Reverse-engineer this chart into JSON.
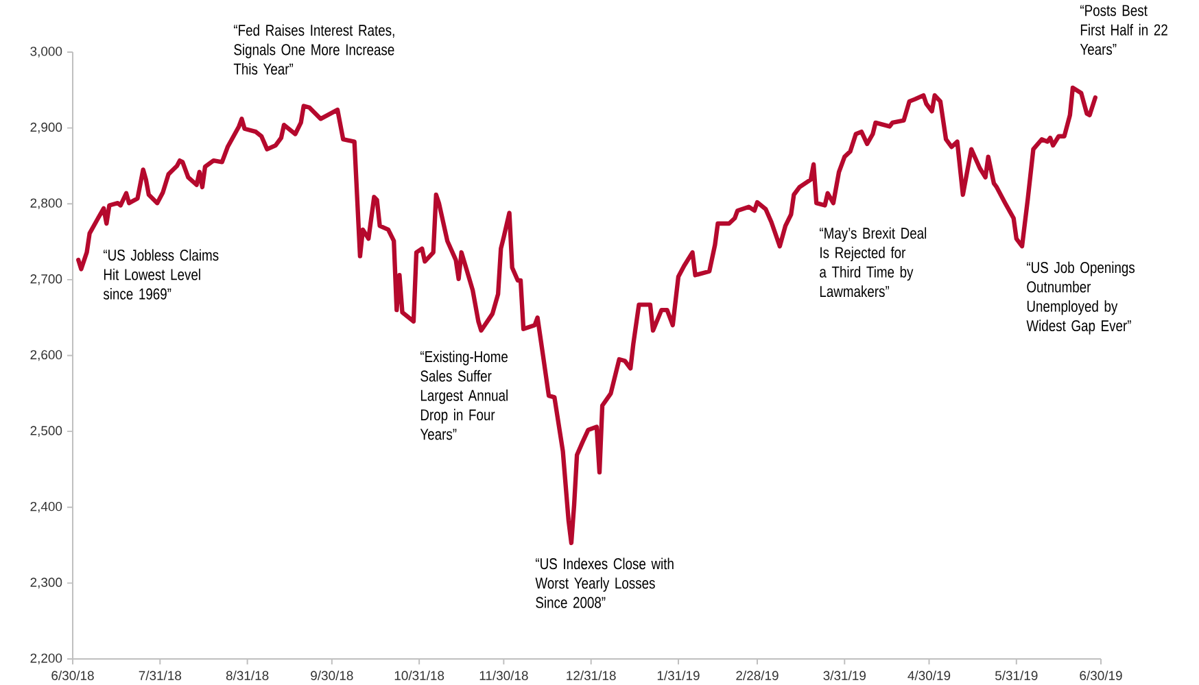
{
  "chart_data": {
    "type": "line",
    "x": [
      "2018-07-02",
      "2018-07-03",
      "2018-07-05",
      "2018-07-06",
      "2018-07-09",
      "2018-07-11",
      "2018-07-12",
      "2018-07-13",
      "2018-07-16",
      "2018-07-17",
      "2018-07-19",
      "2018-07-20",
      "2018-07-23",
      "2018-07-25",
      "2018-07-26",
      "2018-07-27",
      "2018-07-30",
      "2018-08-01",
      "2018-08-03",
      "2018-08-06",
      "2018-08-07",
      "2018-08-08",
      "2018-08-10",
      "2018-08-13",
      "2018-08-14",
      "2018-08-15",
      "2018-08-16",
      "2018-08-19",
      "2018-08-22",
      "2018-08-24",
      "2018-08-28",
      "2018-08-29",
      "2018-08-30",
      "2018-09-03",
      "2018-09-05",
      "2018-09-07",
      "2018-09-10",
      "2018-09-12",
      "2018-09-13",
      "2018-09-17",
      "2018-09-19",
      "2018-09-20",
      "2018-09-22",
      "2018-09-26",
      "2018-10-02",
      "2018-10-04",
      "2018-10-08",
      "2018-10-10",
      "2018-10-11",
      "2018-10-13",
      "2018-10-15",
      "2018-10-16",
      "2018-10-17",
      "2018-10-20",
      "2018-10-22",
      "2018-10-23",
      "2018-10-24",
      "2018-10-25",
      "2018-10-29",
      "2018-10-30",
      "2018-11-01",
      "2018-11-02",
      "2018-11-05",
      "2018-11-06",
      "2018-11-07",
      "2018-11-10",
      "2018-11-13",
      "2018-11-14",
      "2018-11-15",
      "2018-11-17",
      "2018-11-19",
      "2018-11-21",
      "2018-11-22",
      "2018-11-26",
      "2018-11-28",
      "2018-11-29",
      "2018-11-30",
      "2018-12-02",
      "2018-12-03",
      "2018-12-05",
      "2018-12-06",
      "2018-12-07",
      "2018-12-11",
      "2018-12-12",
      "2018-12-14",
      "2018-12-16",
      "2018-12-18",
      "2018-12-21",
      "2018-12-23",
      "2018-12-24",
      "2018-12-25",
      "2018-12-26",
      "2018-12-28",
      "2018-12-30",
      "2019-01-02",
      "2019-01-03",
      "2019-01-04",
      "2019-01-07",
      "2019-01-10",
      "2019-01-12",
      "2019-01-14",
      "2019-01-15",
      "2019-01-17",
      "2019-01-21",
      "2019-01-22",
      "2019-01-25",
      "2019-01-27",
      "2019-01-29",
      "2019-01-31",
      "2019-02-02",
      "2019-02-05",
      "2019-02-06",
      "2019-02-11",
      "2019-02-13",
      "2019-02-14",
      "2019-02-18",
      "2019-02-20",
      "2019-02-21",
      "2019-02-25",
      "2019-02-27",
      "2019-02-28",
      "2019-03-03",
      "2019-03-05",
      "2019-03-08",
      "2019-03-10",
      "2019-03-12",
      "2019-03-13",
      "2019-03-15",
      "2019-03-19",
      "2019-03-20",
      "2019-03-21",
      "2019-03-24",
      "2019-03-25",
      "2019-03-27",
      "2019-03-29",
      "2019-03-31",
      "2019-04-02",
      "2019-04-04",
      "2019-04-06",
      "2019-04-08",
      "2019-04-10",
      "2019-04-11",
      "2019-04-16",
      "2019-04-17",
      "2019-04-21",
      "2019-04-23",
      "2019-04-25",
      "2019-04-28",
      "2019-04-29",
      "2019-05-01",
      "2019-05-02",
      "2019-05-04",
      "2019-05-06",
      "2019-05-08",
      "2019-05-10",
      "2019-05-12",
      "2019-05-14",
      "2019-05-15",
      "2019-05-18",
      "2019-05-20",
      "2019-05-21",
      "2019-05-23",
      "2019-05-24",
      "2019-05-27",
      "2019-05-30",
      "2019-05-31",
      "2019-06-02",
      "2019-06-04",
      "2019-06-06",
      "2019-06-09",
      "2019-06-11",
      "2019-06-12",
      "2019-06-13",
      "2019-06-15",
      "2019-06-17",
      "2019-06-19",
      "2019-06-20",
      "2019-06-23",
      "2019-06-25",
      "2019-06-26",
      "2019-06-28"
    ],
    "series": [
      {
        "color": "#b5092d",
        "values": [
          2726,
          2714,
          2736,
          2761,
          2781,
          2794,
          2774,
          2798,
          2801,
          2798,
          2814,
          2801,
          2807,
          2845,
          2832,
          2812,
          2801,
          2815,
          2839,
          2850,
          2857,
          2855,
          2835,
          2825,
          2842,
          2822,
          2849,
          2857,
          2855,
          2875,
          2902,
          2912,
          2899,
          2895,
          2889,
          2872,
          2877,
          2887,
          2904,
          2892,
          2907,
          2929,
          2927,
          2912,
          2924,
          2885,
          2882,
          2731,
          2766,
          2754,
          2809,
          2805,
          2771,
          2766,
          2751,
          2660,
          2706,
          2657,
          2645,
          2736,
          2741,
          2724,
          2736,
          2812,
          2801,
          2751,
          2726,
          2701,
          2736,
          2711,
          2686,
          2645,
          2633,
          2655,
          2681,
          2741,
          2756,
          2788,
          2716,
          2699,
          2699,
          2635,
          2640,
          2650,
          2599,
          2547,
          2545,
          2474,
          2383,
          2353,
          2403,
          2469,
          2486,
          2502,
          2506,
          2446,
          2534,
          2550,
          2595,
          2593,
          2583,
          2615,
          2667,
          2667,
          2633,
          2660,
          2660,
          2640,
          2704,
          2718,
          2736,
          2706,
          2711,
          2746,
          2774,
          2774,
          2781,
          2791,
          2796,
          2791,
          2802,
          2793,
          2776,
          2744,
          2771,
          2786,
          2812,
          2822,
          2832,
          2852,
          2801,
          2798,
          2814,
          2801,
          2842,
          2862,
          2869,
          2892,
          2895,
          2879,
          2892,
          2907,
          2902,
          2907,
          2910,
          2935,
          2938,
          2943,
          2932,
          2922,
          2943,
          2935,
          2885,
          2875,
          2882,
          2812,
          2852,
          2872,
          2847,
          2835,
          2862,
          2827,
          2822,
          2801,
          2781,
          2754,
          2744,
          2805,
          2872,
          2885,
          2882,
          2887,
          2877,
          2889,
          2889,
          2917,
          2953,
          2946,
          2919,
          2917,
          2940
        ]
      }
    ],
    "xlim": [
      "2018-06-30",
      "2019-06-30"
    ],
    "xticks": [
      {
        "value": "2018-06-30",
        "label": "6/30/18"
      },
      {
        "value": "2018-07-31",
        "label": "7/31/18"
      },
      {
        "value": "2018-08-31",
        "label": "8/31/18"
      },
      {
        "value": "2018-09-30",
        "label": "9/30/18"
      },
      {
        "value": "2018-10-31",
        "label": "10/31/18"
      },
      {
        "value": "2018-11-30",
        "label": "11/30/18"
      },
      {
        "value": "2018-12-31",
        "label": "12/31/18"
      },
      {
        "value": "2019-01-31",
        "label": "1/31/19"
      },
      {
        "value": "2019-02-28",
        "label": "2/28/19"
      },
      {
        "value": "2019-03-31",
        "label": "3/31/19"
      },
      {
        "value": "2019-04-30",
        "label": "4/30/19"
      },
      {
        "value": "2019-05-31",
        "label": "5/31/19"
      },
      {
        "value": "2019-06-30",
        "label": "6/30/19"
      }
    ],
    "ylim": [
      2200,
      3000
    ],
    "yticks": [
      {
        "value": 2200,
        "label": "2,200"
      },
      {
        "value": 2300,
        "label": "2,300"
      },
      {
        "value": 2400,
        "label": "2,400"
      },
      {
        "value": 2500,
        "label": "2,500"
      },
      {
        "value": 2600,
        "label": "2,600"
      },
      {
        "value": 2700,
        "label": "2,700"
      },
      {
        "value": 2800,
        "label": "2,800"
      },
      {
        "value": 2900,
        "label": "2,900"
      },
      {
        "value": 3000,
        "label": "3,000"
      }
    ],
    "grid": false,
    "marker": "none",
    "line_style": "solid",
    "annotations": [
      "“US Jobless Claims Hit Lowest Level since 1969”",
      "“Fed Raises Interest Rates, Signals One More Increase This Year”",
      "“Existing-Home Sales Suffer Largest Annual Drop in Four Years”",
      "“US Indexes Close with Worst Yearly Losses Since 2008”",
      "“May’s Brexit Deal Is Rejected for a Third Time by Lawmakers”",
      "“US Job Openings Outnumber Unemployed by Widest Gap Ever”",
      "“Posts Best First Half in 22 Years”"
    ]
  }
}
